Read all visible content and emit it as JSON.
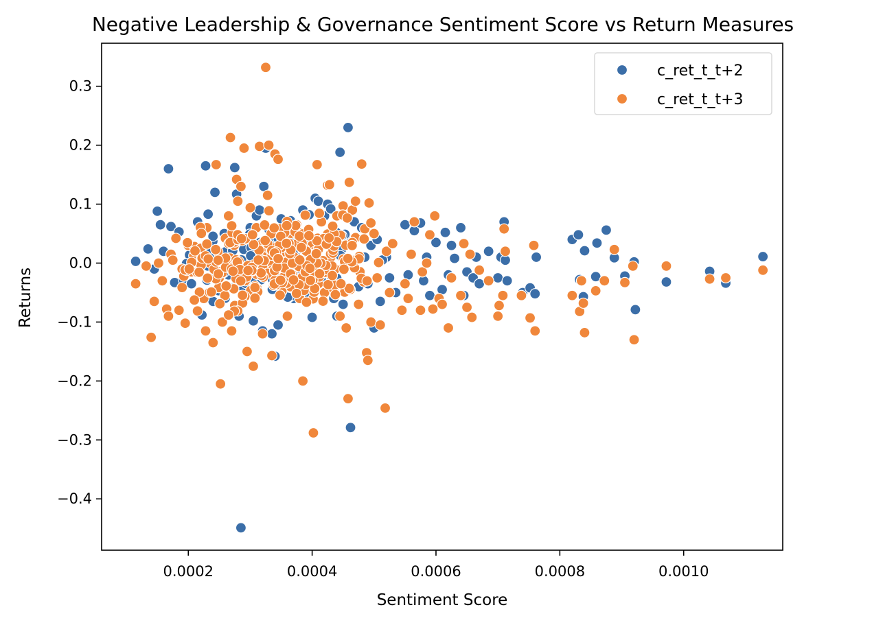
{
  "chart_data": {
    "type": "scatter",
    "title": "Negative Leadership & Governance Sentiment Score vs Return Measures",
    "xlabel": "Sentiment Score",
    "ylabel": "Returns",
    "xlim": [
      6e-05,
      0.00116
    ],
    "ylim": [
      -0.487,
      0.373
    ],
    "xticks": [
      0.0002,
      0.0004,
      0.0006,
      0.0008,
      0.001
    ],
    "xtick_labels": [
      "0.0002",
      "0.0004",
      "0.0006",
      "0.0008",
      "0.0010"
    ],
    "yticks": [
      -0.4,
      -0.3,
      -0.2,
      -0.1,
      0.0,
      0.1,
      0.2,
      0.3
    ],
    "ytick_labels": [
      "−0.4",
      "−0.3",
      "−0.2",
      "−0.1",
      "0.0",
      "0.1",
      "0.2",
      "0.3"
    ],
    "grid": false,
    "legend_position": "top-right",
    "series": [
      {
        "name": "c_ret_t_t+2",
        "color": "#3b6ea8",
        "points": [
          [
            0.000115,
            0.003
          ],
          [
            0.000135,
            0.024
          ],
          [
            0.000145,
            -0.01
          ],
          [
            0.00015,
            0.088
          ],
          [
            0.000155,
            0.065
          ],
          [
            0.00016,
            0.02
          ],
          [
            0.000168,
            0.16
          ],
          [
            0.000172,
            0.062
          ],
          [
            0.000178,
            -0.033
          ],
          [
            0.000185,
            0.053
          ],
          [
            0.000192,
            -0.028
          ],
          [
            0.000205,
            -0.035
          ],
          [
            0.000215,
            0.07
          ],
          [
            0.000222,
            -0.088
          ],
          [
            0.000228,
            0.165
          ],
          [
            0.000232,
            0.083
          ],
          [
            0.00024,
            -0.065
          ],
          [
            0.000243,
            0.12
          ],
          [
            0.00025,
            -0.045
          ],
          [
            0.000258,
            0.05
          ],
          [
            0.000265,
            -0.02
          ],
          [
            0.000272,
            0.052
          ],
          [
            0.000275,
            0.162
          ],
          [
            0.000278,
            0.117
          ],
          [
            0.000282,
            -0.09
          ],
          [
            0.000285,
            -0.449
          ],
          [
            0.00029,
            0.03
          ],
          [
            0.000295,
            -0.01
          ],
          [
            0.0003,
            0.06
          ],
          [
            0.000305,
            -0.098
          ],
          [
            0.00031,
            0.08
          ],
          [
            0.000315,
            0.09
          ],
          [
            0.00032,
            -0.115
          ],
          [
            0.000322,
            0.13
          ],
          [
            0.000325,
            0.195
          ],
          [
            0.00033,
            0.01
          ],
          [
            0.000335,
            -0.12
          ],
          [
            0.00034,
            -0.158
          ],
          [
            0.000345,
            -0.105
          ],
          [
            0.00035,
            0.075
          ],
          [
            0.000355,
            -0.04
          ],
          [
            0.00036,
            0.02
          ],
          [
            0.000365,
            0.072
          ],
          [
            0.00037,
            -0.06
          ],
          [
            0.000375,
            0.05
          ],
          [
            0.00038,
            -0.005
          ],
          [
            0.000385,
            0.09
          ],
          [
            0.00039,
            0.035
          ],
          [
            0.000395,
            0.082
          ],
          [
            0.0004,
            -0.092
          ],
          [
            0.000405,
            0.11
          ],
          [
            0.00041,
            0.105
          ],
          [
            0.000415,
            -0.03
          ],
          [
            0.00042,
            0.08
          ],
          [
            0.000425,
            0.1
          ],
          [
            0.00043,
            0.092
          ],
          [
            0.000435,
            -0.06
          ],
          [
            0.00044,
            -0.09
          ],
          [
            0.000445,
            0.188
          ],
          [
            0.00045,
            -0.07
          ],
          [
            0.000455,
            0.045
          ],
          [
            0.000458,
            0.23
          ],
          [
            0.000462,
            -0.279
          ],
          [
            0.000468,
            0.07
          ],
          [
            0.000475,
            -0.04
          ],
          [
            0.00048,
            0.06
          ],
          [
            0.000485,
            0.01
          ],
          [
            0.00049,
            -0.035
          ],
          [
            0.000495,
            0.03
          ],
          [
            0.0005,
            -0.11
          ],
          [
            0.000505,
            0.04
          ],
          [
            0.00051,
            -0.065
          ],
          [
            0.00052,
            0.01
          ],
          [
            0.000525,
            -0.025
          ],
          [
            0.000535,
            -0.05
          ],
          [
            0.00055,
            0.065
          ],
          [
            0.000555,
            -0.02
          ],
          [
            0.000565,
            0.055
          ],
          [
            0.000575,
            0.068
          ],
          [
            0.00058,
            -0.03
          ],
          [
            0.000585,
            0.01
          ],
          [
            0.00059,
            -0.055
          ],
          [
            0.0006,
            0.035
          ],
          [
            0.00061,
            -0.045
          ],
          [
            0.000615,
            0.052
          ],
          [
            0.00062,
            -0.02
          ],
          [
            0.000625,
            0.03
          ],
          [
            0.00063,
            0.008
          ],
          [
            0.000645,
            -0.055
          ],
          [
            0.00064,
            0.06
          ],
          [
            0.00065,
            -0.015
          ],
          [
            0.00066,
            -0.025
          ],
          [
            0.000665,
            0.01
          ],
          [
            0.00067,
            -0.035
          ],
          [
            0.000685,
            0.02
          ],
          [
            0.0007,
            -0.025
          ],
          [
            0.000705,
            0.01
          ],
          [
            0.00071,
            0.07
          ],
          [
            0.000712,
            0.005
          ],
          [
            0.000715,
            -0.03
          ],
          [
            0.00074,
            -0.05
          ],
          [
            0.000752,
            -0.042
          ],
          [
            0.00076,
            -0.052
          ],
          [
            0.000762,
            0.01
          ],
          [
            0.00082,
            0.04
          ],
          [
            0.00083,
            0.048
          ],
          [
            0.000832,
            -0.028
          ],
          [
            0.000838,
            -0.057
          ],
          [
            0.00084,
            0.021
          ],
          [
            0.000858,
            -0.023
          ],
          [
            0.00086,
            0.034
          ],
          [
            0.000875,
            0.056
          ],
          [
            0.000888,
            0.009
          ],
          [
            0.000905,
            -0.022
          ],
          [
            0.00092,
            0.002
          ],
          [
            0.000922,
            -0.079
          ],
          [
            0.000972,
            -0.032
          ],
          [
            0.001042,
            -0.014
          ],
          [
            0.001068,
            -0.034
          ],
          [
            0.001128,
            0.011
          ]
        ]
      },
      {
        "name": "c_ret_t_t+3",
        "color": "#f0873b",
        "points": [
          [
            0.000115,
            -0.035
          ],
          [
            0.000132,
            -0.005
          ],
          [
            0.00014,
            -0.126
          ],
          [
            0.000145,
            -0.065
          ],
          [
            0.000152,
            0.0
          ],
          [
            0.000158,
            -0.03
          ],
          [
            0.000165,
            -0.078
          ],
          [
            0.000168,
            -0.09
          ],
          [
            0.000172,
            0.015
          ],
          [
            0.000175,
            0.005
          ],
          [
            0.00018,
            0.042
          ],
          [
            0.000185,
            -0.08
          ],
          [
            0.00019,
            -0.01
          ],
          [
            0.000195,
            -0.102
          ],
          [
            0.0002,
            0.03
          ],
          [
            0.000205,
            -0.015
          ],
          [
            0.00021,
            0.028
          ],
          [
            0.000215,
            -0.08
          ],
          [
            0.00022,
            0.025
          ],
          [
            0.000225,
            -0.06
          ],
          [
            0.000228,
            -0.115
          ],
          [
            0.00023,
            0.06
          ],
          [
            0.000235,
            0.0
          ],
          [
            0.00024,
            -0.135
          ],
          [
            0.000245,
            0.167
          ],
          [
            0.00025,
            -0.025
          ],
          [
            0.000252,
            -0.205
          ],
          [
            0.000255,
            -0.1
          ],
          [
            0.00026,
            0.042
          ],
          [
            0.000265,
            0.08
          ],
          [
            0.000268,
            0.213
          ],
          [
            0.00027,
            -0.115
          ],
          [
            0.000275,
            -0.072
          ],
          [
            0.000278,
            0.142
          ],
          [
            0.00028,
            0.105
          ],
          [
            0.000285,
            0.13
          ],
          [
            0.00029,
            0.195
          ],
          [
            0.000292,
            -0.03
          ],
          [
            0.000295,
            -0.15
          ],
          [
            0.0003,
            0.094
          ],
          [
            0.000305,
            -0.175
          ],
          [
            0.00031,
            0.06
          ],
          [
            0.000315,
            0.198
          ],
          [
            0.00032,
            -0.12
          ],
          [
            0.000325,
            0.332
          ],
          [
            0.000328,
            0.115
          ],
          [
            0.00033,
            0.2
          ],
          [
            0.000335,
            -0.157
          ],
          [
            0.00034,
            0.185
          ],
          [
            0.000345,
            0.176
          ],
          [
            0.00035,
            -0.01
          ],
          [
            0.000355,
            0.06
          ],
          [
            0.00036,
            -0.09
          ],
          [
            0.000365,
            -0.04
          ],
          [
            0.00037,
            0.03
          ],
          [
            0.000375,
            0.065
          ],
          [
            0.00038,
            -0.06
          ],
          [
            0.000385,
            -0.2
          ],
          [
            0.00039,
            0.05
          ],
          [
            0.000395,
            -0.02
          ],
          [
            0.0004,
            0.03
          ],
          [
            0.000402,
            -0.288
          ],
          [
            0.000405,
            0.02
          ],
          [
            0.000408,
            0.167
          ],
          [
            0.00041,
            -0.035
          ],
          [
            0.000415,
            0.07
          ],
          [
            0.00042,
            -0.05
          ],
          [
            0.000425,
            0.132
          ],
          [
            0.000428,
            0.133
          ],
          [
            0.00043,
            0.01
          ],
          [
            0.000435,
            -0.045
          ],
          [
            0.00044,
            0.08
          ],
          [
            0.000445,
            -0.09
          ],
          [
            0.00045,
            0.097
          ],
          [
            0.000455,
            -0.11
          ],
          [
            0.000458,
            -0.23
          ],
          [
            0.00046,
            0.137
          ],
          [
            0.000465,
            0.09
          ],
          [
            0.00047,
            0.105
          ],
          [
            0.000475,
            -0.07
          ],
          [
            0.00048,
            0.168
          ],
          [
            0.000485,
            0.058
          ],
          [
            0.000488,
            -0.152
          ],
          [
            0.00049,
            -0.165
          ],
          [
            0.000492,
            0.102
          ],
          [
            0.000495,
            -0.1
          ],
          [
            0.0005,
            0.05
          ],
          [
            0.000505,
            -0.025
          ],
          [
            0.00051,
            -0.105
          ],
          [
            0.000518,
            -0.246
          ],
          [
            0.00052,
            0.02
          ],
          [
            0.000525,
            -0.05
          ],
          [
            0.00053,
            0.033
          ],
          [
            0.000545,
            -0.08
          ],
          [
            0.00055,
            -0.035
          ],
          [
            0.000555,
            -0.06
          ],
          [
            0.00056,
            0.015
          ],
          [
            0.000565,
            0.07
          ],
          [
            0.000575,
            -0.08
          ],
          [
            0.000578,
            -0.015
          ],
          [
            0.000585,
            0.0
          ],
          [
            0.00059,
            0.048
          ],
          [
            0.000595,
            -0.078
          ],
          [
            0.000598,
            0.08
          ],
          [
            0.000605,
            -0.06
          ],
          [
            0.00061,
            -0.07
          ],
          [
            0.00062,
            -0.11
          ],
          [
            0.000625,
            -0.025
          ],
          [
            0.00064,
            -0.055
          ],
          [
            0.000645,
            0.033
          ],
          [
            0.00065,
            -0.075
          ],
          [
            0.000655,
            0.015
          ],
          [
            0.000658,
            -0.092
          ],
          [
            0.00067,
            -0.012
          ],
          [
            0.000685,
            -0.03
          ],
          [
            0.0007,
            -0.09
          ],
          [
            0.000702,
            -0.072
          ],
          [
            0.000708,
            -0.055
          ],
          [
            0.00071,
            0.058
          ],
          [
            0.000712,
            0.02
          ],
          [
            0.000738,
            -0.055
          ],
          [
            0.000752,
            -0.093
          ],
          [
            0.000758,
            0.03
          ],
          [
            0.00076,
            -0.115
          ],
          [
            0.00082,
            -0.055
          ],
          [
            0.000832,
            -0.082
          ],
          [
            0.000835,
            -0.03
          ],
          [
            0.000838,
            -0.068
          ],
          [
            0.00084,
            -0.118
          ],
          [
            0.000858,
            -0.047
          ],
          [
            0.000872,
            -0.03
          ],
          [
            0.000888,
            0.023
          ],
          [
            0.000905,
            -0.033
          ],
          [
            0.000918,
            -0.005
          ],
          [
            0.00092,
            -0.13
          ],
          [
            0.000972,
            -0.005
          ],
          [
            0.001042,
            -0.027
          ],
          [
            0.001068,
            -0.025
          ],
          [
            0.001128,
            -0.012
          ]
        ]
      },
      {
        "name": "",
        "color": "#f0873b",
        "points_cluster": {
          "x_center": 0.00034,
          "y_center": 0.0,
          "x_spread": 8e-05,
          "y_spread": 0.035,
          "count": 300
        }
      }
    ]
  }
}
